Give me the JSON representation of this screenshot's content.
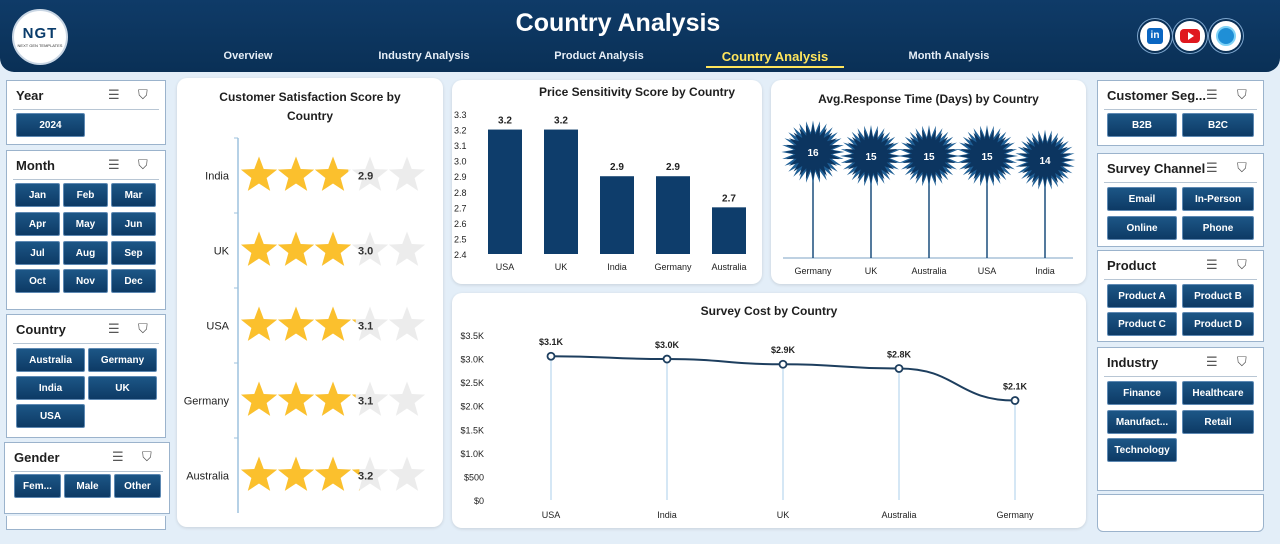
{
  "header": {
    "title": "Country Analysis",
    "logo_text": "NGT",
    "logo_sub": "NEXT GEN TEMPLATES",
    "nav": [
      "Overview",
      "Industry Analysis",
      "Product Analysis",
      "Country Analysis",
      "Month Analysis"
    ],
    "active_nav": "Country Analysis",
    "social": [
      "linkedin-icon",
      "youtube-icon",
      "website-globe-icon"
    ]
  },
  "colors": {
    "header": "#0a3056",
    "accent": "#ffe55c",
    "bar": "#0e3d6b",
    "star": "#fbc02d",
    "star_empty": "#ececec",
    "button": "#0d3a65"
  },
  "slicers": {
    "year": {
      "title": "Year",
      "items": [
        "2024"
      ]
    },
    "month": {
      "title": "Month",
      "items": [
        "Jan",
        "Feb",
        "Mar",
        "Apr",
        "May",
        "Jun",
        "Jul",
        "Aug",
        "Sep",
        "Oct",
        "Nov",
        "Dec"
      ]
    },
    "country": {
      "title": "Country",
      "items": [
        "Australia",
        "Germany",
        "India",
        "UK",
        "USA"
      ]
    },
    "gender": {
      "title": "Gender",
      "items": [
        "Fem...",
        "Male",
        "Other"
      ]
    },
    "segment": {
      "title": "Customer Seg...",
      "items": [
        "B2B",
        "B2C"
      ]
    },
    "channel": {
      "title": "Survey Channel",
      "items": [
        "Email",
        "In-Person",
        "Online",
        "Phone"
      ]
    },
    "product": {
      "title": "Product",
      "items": [
        "Product A",
        "Product B",
        "Product C",
        "Product D"
      ]
    },
    "industry": {
      "title": "Industry",
      "items": [
        "Finance",
        "Healthcare",
        "Manufact...",
        "Retail",
        "Technology"
      ]
    }
  },
  "chart_data": [
    {
      "type": "bar",
      "title": "Customer Satisfaction Score by Country",
      "style": "star-rating",
      "categories": [
        "India",
        "UK",
        "USA",
        "Germany",
        "Australia"
      ],
      "values": [
        2.9,
        3.0,
        3.1,
        3.1,
        3.2
      ],
      "value_labels": [
        "2.9",
        "3.0",
        "3.1",
        "3.1",
        "3.2"
      ],
      "max": 5
    },
    {
      "type": "bar",
      "title": "Price Sensitivity Score by Country",
      "categories": [
        "USA",
        "UK",
        "India",
        "Germany",
        "Australia"
      ],
      "values": [
        3.2,
        3.2,
        2.9,
        2.9,
        2.7
      ],
      "value_labels": [
        "3.2",
        "3.2",
        "2.9",
        "2.9",
        "2.7"
      ],
      "yticks": [
        "3.3",
        "3.2",
        "3.1",
        "3.0",
        "2.9",
        "2.8",
        "2.7",
        "2.6",
        "2.5",
        "2.4"
      ],
      "ylim": [
        2.4,
        3.3
      ]
    },
    {
      "type": "bar",
      "title": "Avg.Response Time (Days) by Country",
      "style": "lollipop-starburst",
      "categories": [
        "Germany",
        "UK",
        "Australia",
        "USA",
        "India"
      ],
      "values": [
        16,
        15,
        15,
        15,
        14
      ],
      "value_labels": [
        "16",
        "15",
        "15",
        "15",
        "14"
      ]
    },
    {
      "type": "line",
      "title": "Survey Cost by Country",
      "categories": [
        "USA",
        "India",
        "UK",
        "Australia",
        "Germany"
      ],
      "values": [
        3050,
        2990,
        2880,
        2790,
        2110
      ],
      "value_labels": [
        "$3.1K",
        "$3.0K",
        "$2.9K",
        "$2.8K",
        "$2.1K"
      ],
      "yticks": [
        "$3.5K",
        "$3.0K",
        "$2.5K",
        "$2.0K",
        "$1.5K",
        "$1.0K",
        "$500",
        "$0"
      ],
      "ylim": [
        0,
        3500
      ]
    }
  ]
}
